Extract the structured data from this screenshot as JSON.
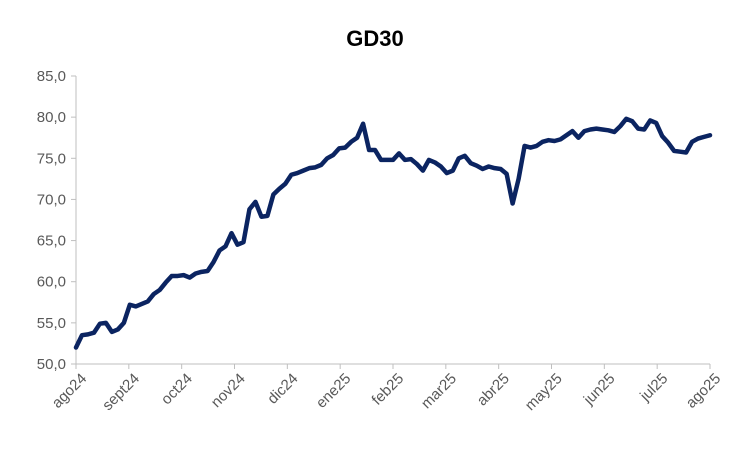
{
  "chart_data": {
    "type": "line",
    "title": "GD30",
    "xlabel": "",
    "ylabel": "",
    "ylim": [
      50,
      85
    ],
    "yticks": [
      "50,0",
      "55,0",
      "60,0",
      "65,0",
      "70,0",
      "75,0",
      "80,0",
      "85,0"
    ],
    "x_tick_labels": [
      "ago24",
      "sept24",
      "oct24",
      "nov24",
      "dic24",
      "ene25",
      "feb25",
      "mar25",
      "abr25",
      "may25",
      "jun25",
      "jul25",
      "ago25"
    ],
    "grid": false,
    "legend": "none",
    "colors": {
      "line": "#0b2461",
      "axis": "#bfbfbf",
      "tick_text": "#595959"
    },
    "series": [
      {
        "values": [
          52.0,
          53.5,
          53.6,
          53.8,
          54.9,
          55.0,
          53.9,
          54.2,
          55.0,
          57.2,
          57.0,
          57.3,
          57.6,
          58.5,
          59.0,
          59.9,
          60.7,
          60.7,
          60.8,
          60.5,
          61.0,
          61.2,
          61.3,
          62.4,
          63.8,
          64.3,
          65.9,
          64.5,
          64.8,
          68.8,
          69.7,
          67.9,
          68.0,
          70.6,
          71.3,
          71.9,
          73.0,
          73.2,
          73.5,
          73.8,
          73.9,
          74.2,
          75.0,
          75.4,
          76.2,
          76.3,
          77.0,
          77.5,
          79.2,
          76.0,
          76.0,
          74.8,
          74.8,
          74.8,
          75.6,
          74.8,
          74.9,
          74.3,
          73.5,
          74.8,
          74.5,
          74.0,
          73.2,
          73.5,
          75.0,
          75.3,
          74.4,
          74.1,
          73.7,
          74.0,
          73.8,
          73.7,
          73.1,
          69.5,
          72.5,
          76.5,
          76.3,
          76.5,
          77.0,
          77.2,
          77.1,
          77.3,
          77.8,
          78.3,
          77.5,
          78.3,
          78.5,
          78.6,
          78.5,
          78.4,
          78.2,
          78.9,
          79.8,
          79.5,
          78.6,
          78.5,
          79.6,
          79.3,
          77.7,
          76.9,
          75.9,
          75.8,
          75.7,
          77.0,
          77.4,
          77.6,
          77.8
        ]
      }
    ]
  }
}
